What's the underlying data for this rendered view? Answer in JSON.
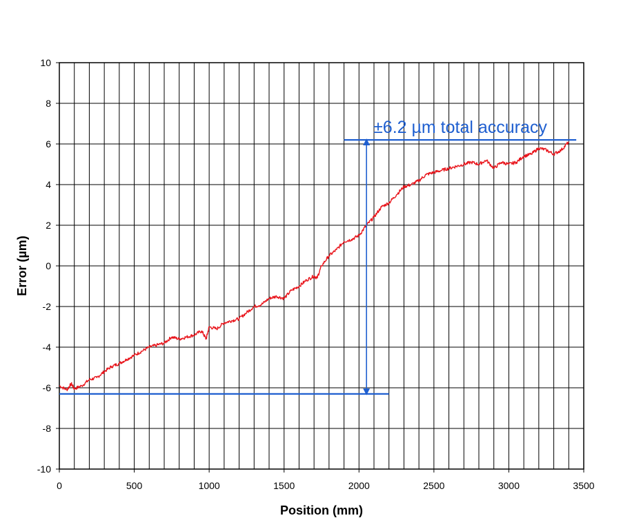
{
  "chart_data": {
    "type": "line",
    "title": "",
    "xlabel": "Position (mm)",
    "ylabel": "Error (µm)",
    "xlim": [
      0,
      3500
    ],
    "ylim": [
      -10,
      10
    ],
    "x_ticks": [
      0,
      500,
      1000,
      1500,
      2000,
      2500,
      3000,
      3500
    ],
    "y_ticks": [
      10,
      8,
      6,
      4,
      2,
      0,
      -2,
      -4,
      -6,
      -8,
      -10
    ],
    "x_gridline_step": 100,
    "y_gridline_step": 2,
    "grid": true,
    "legend": "none",
    "colors": {
      "series": "#e8141b",
      "annotation": "#1f5fd0",
      "grid": "#000000"
    },
    "series": [
      {
        "x": [
          0,
          50,
          80,
          100,
          150,
          200,
          250,
          300,
          350,
          400,
          450,
          500,
          550,
          600,
          650,
          700,
          750,
          800,
          850,
          900,
          950,
          980,
          1000,
          1050,
          1100,
          1150,
          1200,
          1250,
          1300,
          1350,
          1400,
          1450,
          1500,
          1550,
          1600,
          1650,
          1700,
          1720,
          1750,
          1800,
          1850,
          1900,
          1950,
          2000,
          2050,
          2100,
          2150,
          2200,
          2250,
          2300,
          2350,
          2400,
          2450,
          2500,
          2550,
          2600,
          2650,
          2700,
          2750,
          2800,
          2850,
          2900,
          2950,
          3000,
          3050,
          3100,
          3150,
          3200,
          3250,
          3300,
          3350,
          3400
        ],
        "y": [
          -5.9,
          -6.1,
          -5.8,
          -6.05,
          -5.9,
          -5.6,
          -5.5,
          -5.2,
          -4.95,
          -4.8,
          -4.6,
          -4.4,
          -4.2,
          -4.0,
          -3.9,
          -3.8,
          -3.5,
          -3.6,
          -3.5,
          -3.4,
          -3.2,
          -3.6,
          -3.0,
          -3.1,
          -2.8,
          -2.7,
          -2.6,
          -2.3,
          -2.0,
          -1.9,
          -1.6,
          -1.5,
          -1.6,
          -1.2,
          -1.0,
          -0.7,
          -0.5,
          -0.6,
          0.0,
          0.5,
          0.8,
          1.2,
          1.3,
          1.5,
          2.0,
          2.4,
          2.9,
          3.1,
          3.5,
          3.9,
          4.0,
          4.2,
          4.5,
          4.6,
          4.7,
          4.8,
          4.9,
          5.0,
          5.1,
          5.0,
          5.2,
          4.8,
          5.1,
          5.0,
          5.1,
          5.4,
          5.5,
          5.8,
          5.7,
          5.5,
          5.7,
          6.1
        ]
      }
    ],
    "annotations": {
      "label": "±6.2 µm total accuracy",
      "upper_line": {
        "y": 6.2,
        "x_start": 1900,
        "x_end": 3450
      },
      "lower_line": {
        "y": -6.3,
        "x_start": 0,
        "x_end": 2200
      },
      "arrow": {
        "x": 2050,
        "y_from": -6.2,
        "y_to": 6.1
      }
    }
  }
}
